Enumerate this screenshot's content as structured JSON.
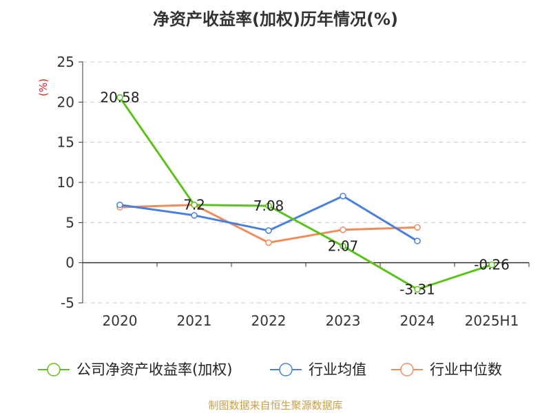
{
  "title": "净资产收益率(加权)历年情况(%)",
  "footer": "制图数据来自恒生聚源数据库",
  "chart_data": {
    "type": "line",
    "title": "净资产收益率(加权)历年情况(%)",
    "ylabel": "(%)",
    "xlabel": "",
    "categories": [
      "2020",
      "2021",
      "2022",
      "2023",
      "2024",
      "2025H1"
    ],
    "yticks": [
      -5,
      0,
      5,
      10,
      15,
      20,
      25
    ],
    "ylim": [
      -5,
      25
    ],
    "grid": true,
    "legend_position": "bottom",
    "series": [
      {
        "name": "公司净资产收益率(加权)",
        "color": "#5ac21a",
        "values": [
          20.58,
          7.2,
          7.08,
          2.07,
          -3.31,
          -0.26
        ],
        "labels": [
          "20.58",
          "7.2",
          "7.08",
          "2.07",
          "-3.31",
          "-0.26"
        ]
      },
      {
        "name": "行业均值",
        "color": "#4a7fdc",
        "values": [
          7.2,
          5.9,
          4.0,
          8.3,
          2.7,
          null
        ]
      },
      {
        "name": "行业中位数",
        "color": "#f08c5a",
        "values": [
          6.9,
          7.2,
          2.5,
          4.1,
          4.4,
          null
        ]
      }
    ]
  }
}
